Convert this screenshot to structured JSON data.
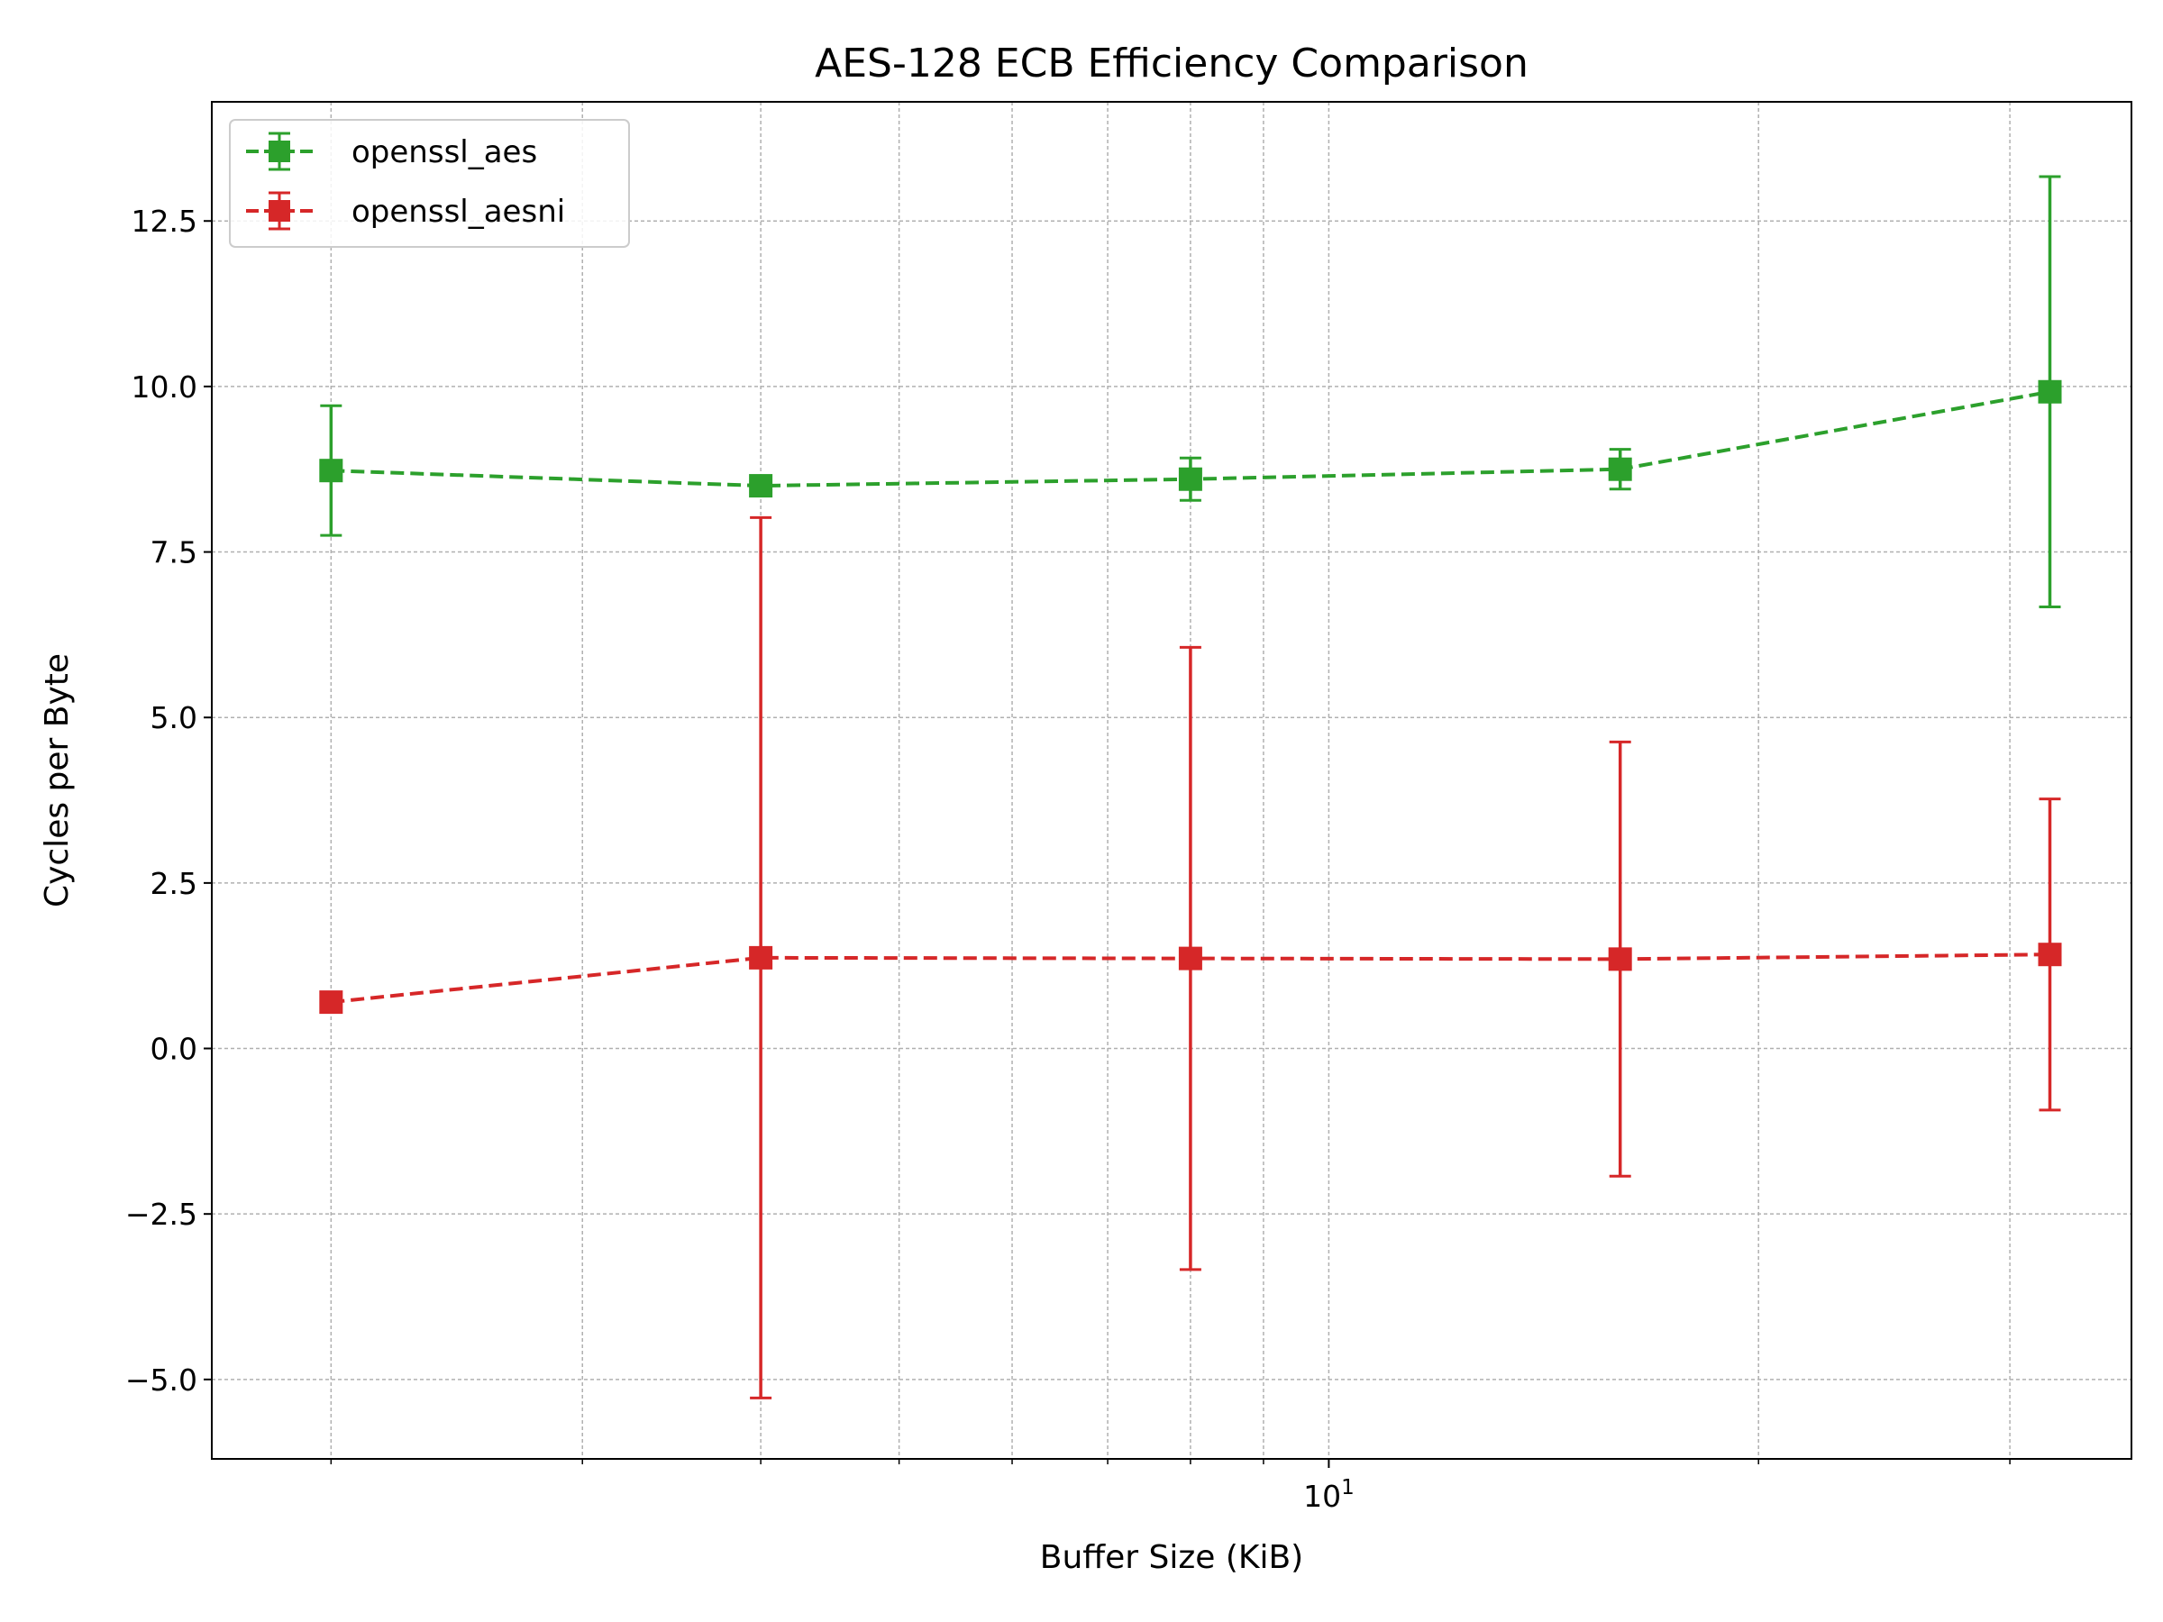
{
  "chart_data": {
    "type": "line",
    "title": "AES-128 ECB Efficiency Comparison",
    "xlabel": "Buffer Size (KiB)",
    "ylabel": "Cycles per Byte",
    "x_scale": "log",
    "x_ticks": [
      {
        "value": 10,
        "label": "10",
        "sup": "1"
      }
    ],
    "x_minor_ticks": [
      2,
      3,
      4,
      5,
      6,
      7,
      8,
      9,
      20,
      30
    ],
    "xlim": [
      1.65,
      36.5
    ],
    "ylim": [
      -6.2,
      14.3
    ],
    "y_ticks": [
      {
        "value": -5,
        "label": "−5.0"
      },
      {
        "value": -2.5,
        "label": "−2.5"
      },
      {
        "value": 0,
        "label": "0.0"
      },
      {
        "value": 2.5,
        "label": "2.5"
      },
      {
        "value": 5,
        "label": "5.0"
      },
      {
        "value": 7.5,
        "label": "7.5"
      },
      {
        "value": 10,
        "label": "10.0"
      },
      {
        "value": 12.5,
        "label": "12.5"
      }
    ],
    "grid": true,
    "legend_position": "top-left",
    "series": [
      {
        "name": "openssl_aes",
        "color": "#2ca02c",
        "linestyle": "dashed",
        "marker": "square",
        "x": [
          2,
          4,
          8,
          16,
          32
        ],
        "y": [
          8.73,
          8.5,
          8.6,
          8.75,
          9.92
        ],
        "yerr": [
          0.98,
          0.1,
          0.32,
          0.3,
          3.25
        ]
      },
      {
        "name": "openssl_aesni",
        "color": "#d62728",
        "linestyle": "dashed",
        "marker": "square",
        "x": [
          2,
          4,
          8,
          16,
          32
        ],
        "y": [
          0.7,
          1.37,
          1.36,
          1.35,
          1.42
        ],
        "yerr": [
          0.08,
          6.65,
          4.7,
          3.28,
          2.35
        ]
      }
    ]
  }
}
